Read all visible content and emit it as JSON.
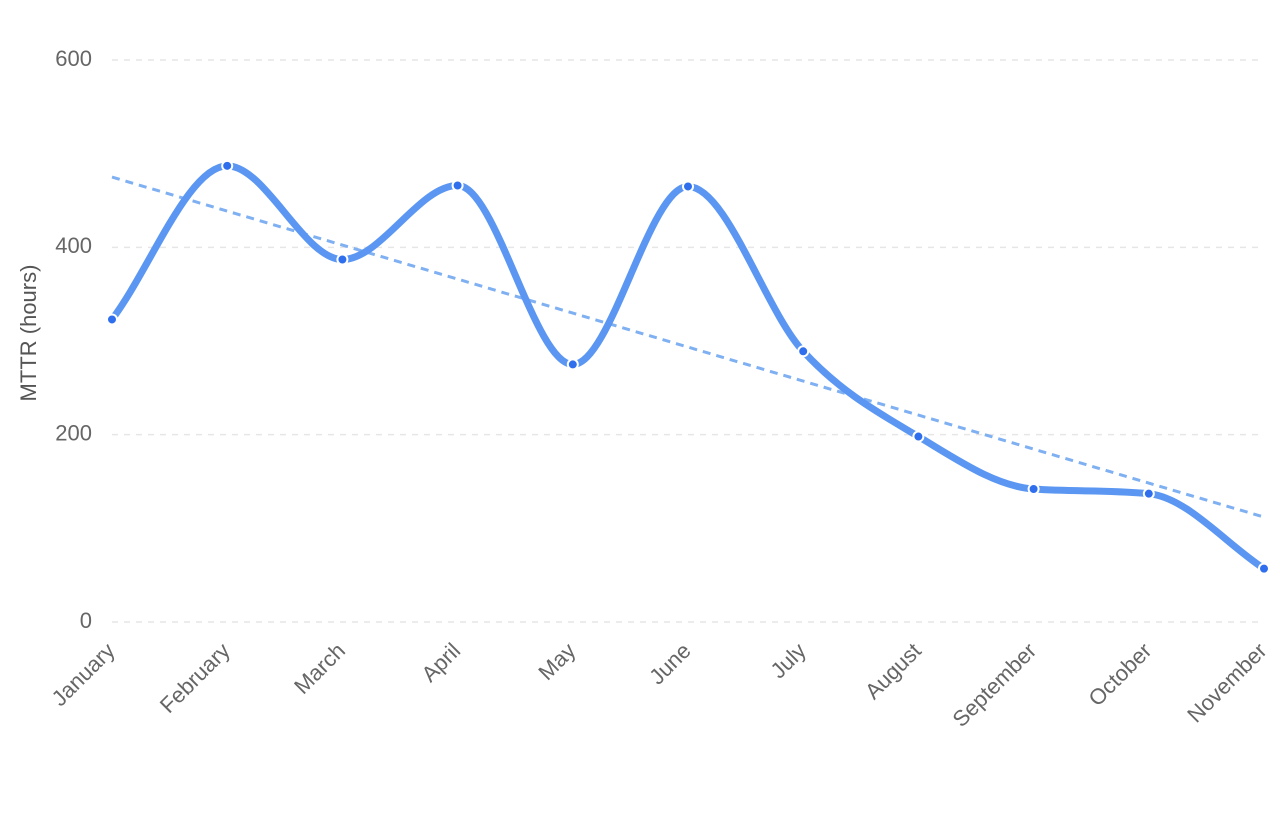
{
  "chart_data": {
    "type": "line",
    "title": "",
    "xlabel": "",
    "ylabel": "MTTR (hours)",
    "categories": [
      "January",
      "February",
      "March",
      "April",
      "May",
      "June",
      "July",
      "August",
      "September",
      "October",
      "November"
    ],
    "series": [
      {
        "name": "",
        "values": [
          323,
          487,
          387,
          466,
          275,
          465,
          289,
          198,
          142,
          137,
          57
        ]
      }
    ],
    "trendline": {
      "start": 475,
      "end": 112,
      "style": "dashed"
    },
    "ylim": [
      0,
      600
    ],
    "yticks": [
      0,
      200,
      400,
      600
    ],
    "grid": true,
    "legend": "none",
    "colors": {
      "series": "#5b97f2",
      "trend": "#7fb0f2",
      "point": "#2f6fed",
      "grid": "#e6e6e6",
      "text": "#666666"
    }
  }
}
